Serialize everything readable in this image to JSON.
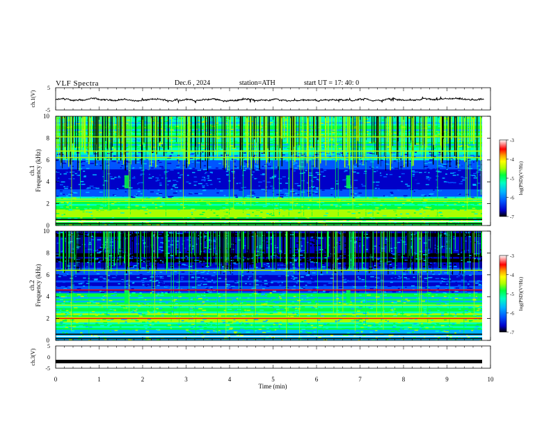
{
  "header": {
    "title": "VLF  Spectra",
    "date": "Dec.6  , 2024",
    "station": "station=ATH",
    "start": "start  UT  =   17: 40: 0"
  },
  "chart_data": [
    {
      "type": "line",
      "panel": "ch1",
      "ylabel": "ch.1(V)",
      "yticks": [
        "5",
        "-5"
      ],
      "ylim": [
        -5,
        5
      ],
      "xlim": [
        0,
        10
      ],
      "data_extent_min": [
        0,
        9.85
      ],
      "baseline_v": -0.5,
      "amplitude_v": 1.2
    },
    {
      "type": "heatmap",
      "panel": "ch1-spectrogram",
      "ylabel": "ch.1",
      "ylabel2": "Frequency (kHz)",
      "yticks": [
        "0",
        "2",
        "4",
        "6",
        "8",
        "10"
      ],
      "ylim": [
        0,
        10
      ],
      "xlim": [
        0,
        10
      ],
      "bands_khz": [
        0.8,
        1.3,
        2.2,
        2.4,
        6.2,
        6.8,
        8.1
      ],
      "bursts_min": [
        1.63,
        6.73
      ],
      "colorbar": {
        "label": "log(PSD)(V²/Hz)",
        "ticks": [
          "-3",
          "-4",
          "-5",
          "-6",
          "-7"
        ],
        "range": [
          -7,
          -3
        ]
      }
    },
    {
      "type": "heatmap",
      "panel": "ch2-spectrogram",
      "ylabel": "ch.2",
      "ylabel2": "Frequency (kHz)",
      "yticks": [
        "0",
        "2",
        "4",
        "6",
        "8",
        "10"
      ],
      "ylim": [
        0,
        10
      ],
      "xlim": [
        0,
        10
      ],
      "bands_khz": [
        2.0,
        2.1,
        3.2,
        4.6,
        6.4
      ],
      "bursts_min": [
        1.63,
        6.73
      ],
      "colorbar": {
        "label": "log(PSD)(V²/Hz)",
        "ticks": [
          "-3",
          "-4",
          "-5",
          "-6",
          "-7"
        ],
        "range": [
          -7,
          -3
        ]
      }
    },
    {
      "type": "line",
      "panel": "ch3",
      "ylabel": "ch.3(V)",
      "yticks": [
        "5",
        "0",
        "-5"
      ],
      "ylim": [
        -5,
        5
      ],
      "xlim": [
        0,
        10
      ],
      "constant_v": -2,
      "xlabel": "Time  (min)",
      "xticks": [
        "0",
        "1",
        "2",
        "3",
        "4",
        "5",
        "6",
        "7",
        "8",
        "9",
        "10"
      ]
    }
  ],
  "colors": {
    "colormap": [
      "#000000",
      "#0000c8",
      "#0055ff",
      "#00b4ff",
      "#00ffc0",
      "#00ff40",
      "#aaff00",
      "#ffff00",
      "#ff9900",
      "#ff0000",
      "#ffffff"
    ]
  }
}
